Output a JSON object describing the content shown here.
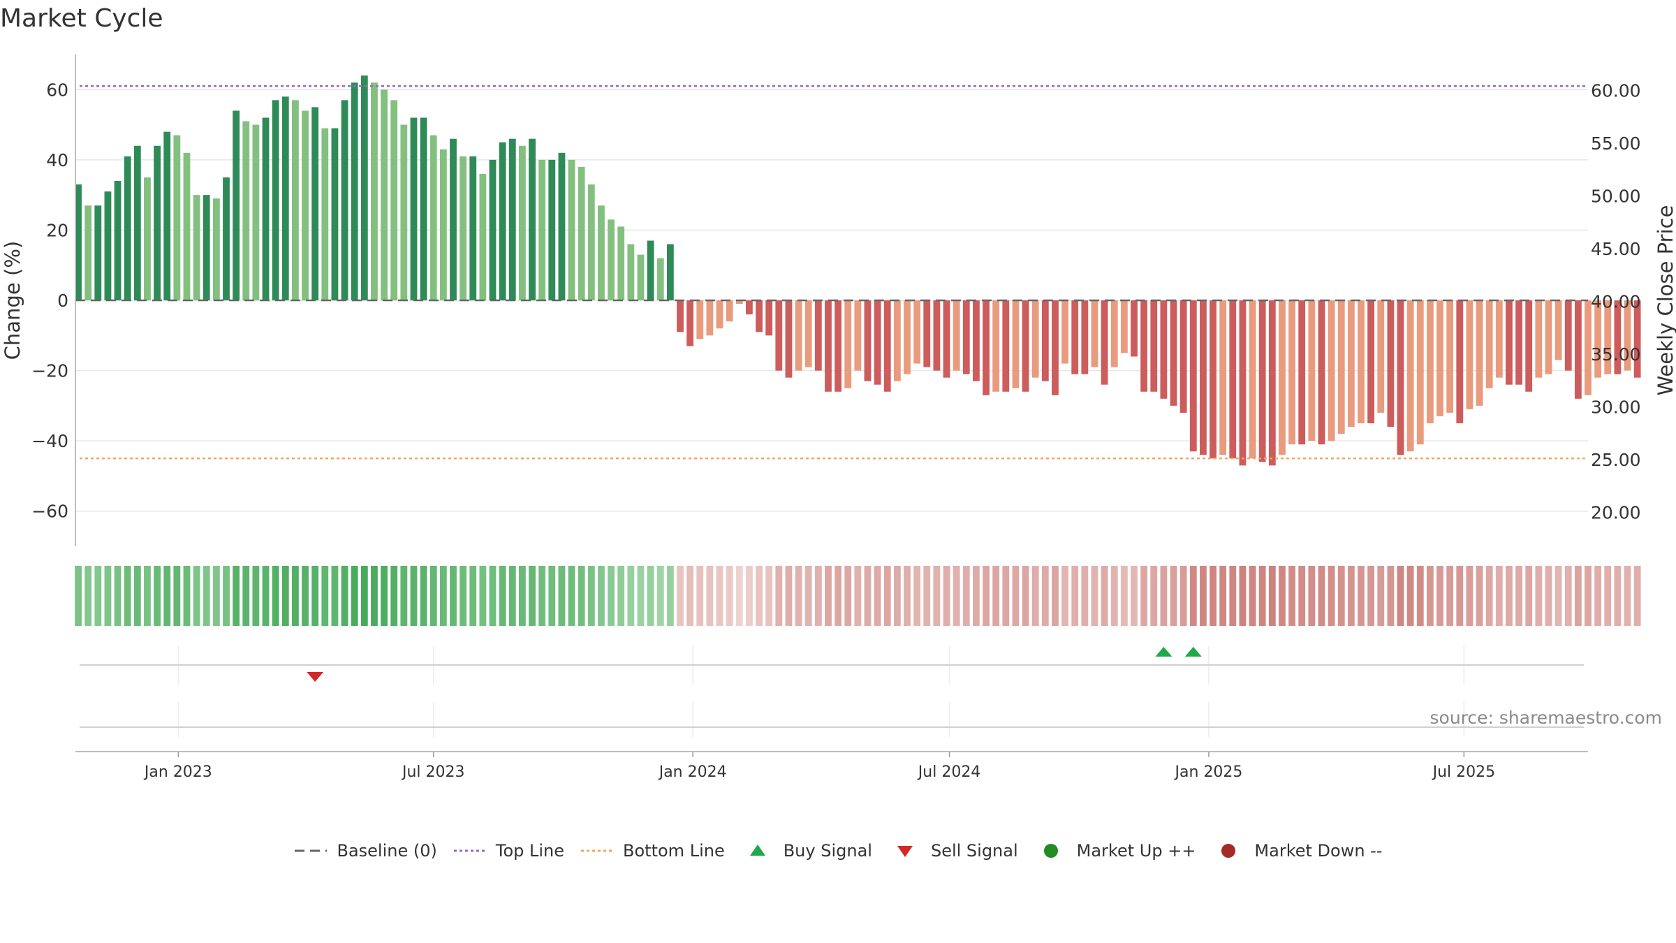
{
  "chart_data": {
    "type": "bar",
    "title": "Market Cycle",
    "ylabel": "Change (%)",
    "y2label": "Weekly Close Price",
    "ylim": [
      -70,
      70
    ],
    "y2lim": [
      16.8,
      63.4
    ],
    "yticks": [
      60,
      40,
      20,
      0,
      -20,
      -40,
      -60
    ],
    "ytick_labels": [
      "60",
      "40",
      "20",
      "0",
      "−20",
      "−40",
      "−60"
    ],
    "y2ticks": [
      60,
      55,
      50,
      45,
      40,
      35,
      30,
      25,
      20
    ],
    "y2tick_labels": [
      "60.00",
      "55.00",
      "50.00",
      "45.00",
      "40.00",
      "35.00",
      "30.00",
      "25.00",
      "20.00"
    ],
    "xlim": [
      "2022-10-20",
      "2025-09-27"
    ],
    "xticks": [
      "2023-01-01",
      "2023-07-01",
      "2024-01-01",
      "2024-07-01",
      "2025-01-01",
      "2025-07-01"
    ],
    "xtick_labels": [
      "Jan 2023",
      "Jul 2023",
      "Jan 2024",
      "Jul 2024",
      "Jan 2025",
      "Jul 2025"
    ],
    "first_week": "2022-10-22",
    "week_step_days": 7,
    "baseline": 0,
    "top_line": 61,
    "bottom_line": -45,
    "values": [
      33,
      27,
      27,
      31,
      34,
      41,
      44,
      35,
      44,
      48,
      47,
      42,
      30,
      30,
      29,
      35,
      54,
      51,
      50,
      52,
      57,
      58,
      57,
      54,
      55,
      49,
      49,
      57,
      62,
      64,
      62,
      60,
      57,
      50,
      52,
      52,
      47,
      43,
      46,
      41,
      41,
      36,
      40,
      45,
      46,
      44,
      46,
      40,
      40,
      42,
      40,
      38,
      33,
      27,
      23,
      21,
      16,
      13,
      17,
      12,
      16,
      -9,
      -13,
      -11,
      -10,
      -8,
      -6,
      -1,
      -4,
      -9,
      -10,
      -20,
      -22,
      -20,
      -19,
      -20,
      -26,
      -26,
      -25,
      -20,
      -23,
      -24,
      -26,
      -23,
      -21,
      -18,
      -19,
      -20,
      -22,
      -20,
      -21,
      -23,
      -27,
      -26,
      -26,
      -25,
      -26,
      -22,
      -23,
      -27,
      -18,
      -21,
      -21,
      -19,
      -24,
      -19,
      -15,
      -16,
      -26,
      -26,
      -28,
      -30,
      -32,
      -43,
      -44,
      -45,
      -44,
      -45,
      -47,
      -45,
      -46,
      -47,
      -44,
      -41,
      -41,
      -40,
      -41,
      -40,
      -38,
      -36,
      -35,
      -35,
      -32,
      -36,
      -44,
      -43,
      -41,
      -35,
      -33,
      -32,
      -35,
      -31,
      -30,
      -25,
      -22,
      -24,
      -24,
      -26,
      -22,
      -21,
      -17,
      -20,
      -28,
      -27,
      -22,
      -21,
      -21,
      -20,
      -22
    ],
    "colors": {
      "up_strong": "#2e8b57",
      "up_weak": "#83c07f",
      "down_strong": "#cd5c5c",
      "down_weak": "#e99b7e",
      "baseline": "#666666",
      "top_line": "#9966cc",
      "bottom_line": "#f4a460",
      "buy_signal": "#1fa84c",
      "sell_signal": "#d62728",
      "market_up": "#228b22",
      "market_down": "#a52a2a"
    },
    "buy_signals": [
      "2024-11-30",
      "2024-12-21"
    ],
    "sell_signals": [
      "2023-04-08"
    ],
    "grid": true,
    "legend_position": "bottom-center"
  },
  "legend": {
    "baseline_label": "Baseline (0)",
    "top_line_label": "Top Line",
    "bottom_line_label": "Bottom Line",
    "buy_signal_label": "Buy Signal",
    "sell_signal_label": "Sell Signal",
    "market_up_label": "Market Up ++",
    "market_down_label": "Market Down --"
  },
  "source": "source: sharemaestro.com"
}
